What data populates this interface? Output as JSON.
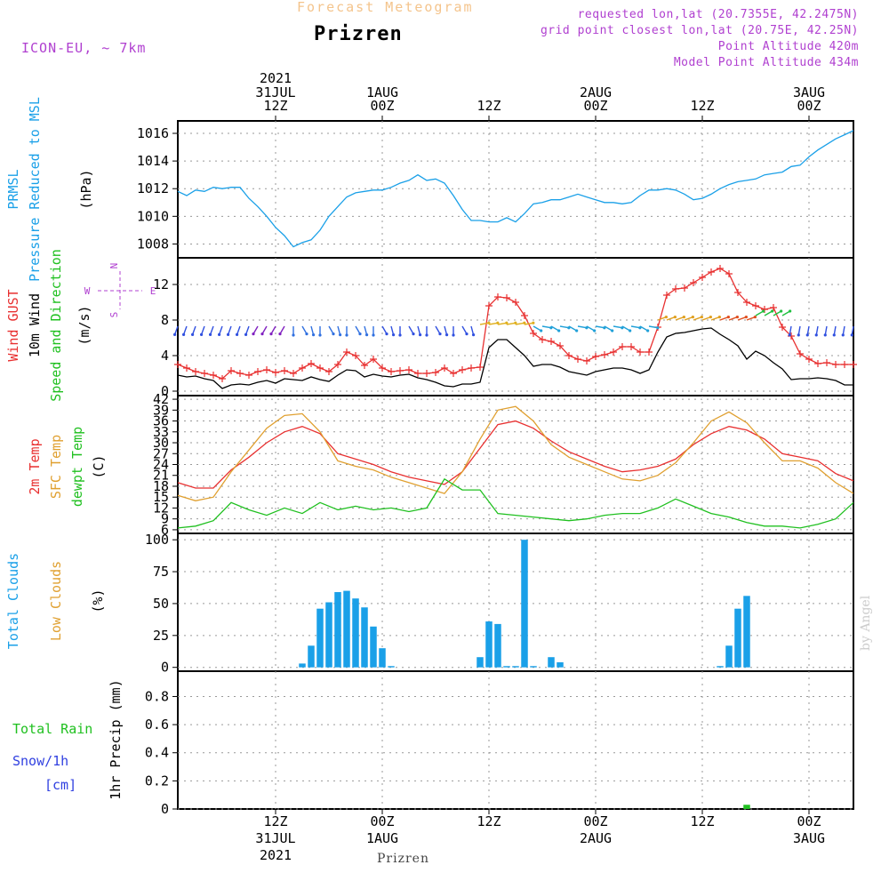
{
  "header": {
    "supertitle": "Forecast Meteogram",
    "location": "Prizren",
    "model": "ICON-EU, ~ 7km",
    "requested": "requested lon,lat (20.7355E, 42.2475N)",
    "gridpoint": "grid point closest lon,lat (20.75E, 42.25N)",
    "point_alt": "Point Altitude 420m",
    "model_alt": "Model Point Altitude 434m"
  },
  "footer": {
    "location": "Prizren",
    "credit": "by Angel"
  },
  "time_axis": {
    "top_year": "2021",
    "ticks": [
      {
        "t": 12,
        "line1": "12Z",
        "line2": "31JUL",
        "line3": "2021"
      },
      {
        "t": 24,
        "line1": "00Z",
        "line2": "1AUG",
        "line3": ""
      },
      {
        "t": 36,
        "line1": "12Z",
        "line2": "",
        "line3": ""
      },
      {
        "t": 48,
        "line1": "00Z",
        "line2": "2AUG",
        "line3": ""
      },
      {
        "t": 60,
        "line1": "12Z",
        "line2": "",
        "line3": ""
      },
      {
        "t": 72,
        "line1": "00Z",
        "line2": "3AUG",
        "line3": ""
      }
    ],
    "range_hours": [
      1,
      77
    ]
  },
  "colors": {
    "pressure": "#1aa0e8",
    "gust": "#e83030",
    "wind": "#000000",
    "t2m": "#e83030",
    "sfc": "#e0a030",
    "dew": "#20c020",
    "cloud": "#1aa0e8",
    "precip": "#20c020",
    "purple": "#b040d0"
  },
  "chart_data": [
    {
      "type": "line",
      "panel": "pressure",
      "ylabel_lines": [
        "PRMSL",
        "Pressure Reduced to MSL",
        "(hPa)"
      ],
      "yticks": [
        1008,
        1010,
        1012,
        1014,
        1016
      ],
      "ylim": [
        1007,
        1016.9
      ],
      "grid": true,
      "series": [
        {
          "name": "PRMSL",
          "x": [
            1,
            2,
            3,
            4,
            5,
            6,
            7,
            8,
            9,
            10,
            11,
            12,
            13,
            14,
            15,
            16,
            17,
            18,
            19,
            20,
            21,
            22,
            23,
            24,
            25,
            26,
            27,
            28,
            29,
            30,
            31,
            32,
            33,
            34,
            35,
            36,
            37,
            38,
            39,
            40,
            41,
            42,
            43,
            44,
            45,
            46,
            47,
            48,
            49,
            50,
            51,
            52,
            53,
            54,
            55,
            56,
            57,
            58,
            59,
            60,
            61,
            62,
            63,
            64,
            65,
            66,
            67,
            68,
            69,
            70,
            71,
            72,
            73,
            74,
            75,
            76,
            77
          ],
          "y": [
            1011.8,
            1011.5,
            1011.9,
            1011.8,
            1012.1,
            1012.0,
            1012.1,
            1012.1,
            1011.3,
            1010.7,
            1010.0,
            1009.2,
            1008.6,
            1007.8,
            1008.1,
            1008.3,
            1009.0,
            1010.0,
            1010.7,
            1011.4,
            1011.7,
            1011.8,
            1011.9,
            1011.9,
            1012.1,
            1012.4,
            1012.6,
            1013.0,
            1012.6,
            1012.7,
            1012.4,
            1011.5,
            1010.5,
            1009.7,
            1009.7,
            1009.6,
            1009.6,
            1009.9,
            1009.6,
            1010.2,
            1010.9,
            1011.0,
            1011.2,
            1011.2,
            1011.4,
            1011.6,
            1011.4,
            1011.2,
            1011.0,
            1011.0,
            1010.9,
            1011.0,
            1011.5,
            1011.9,
            1011.9,
            1012.0,
            1011.9,
            1011.6,
            1011.2,
            1011.3,
            1011.6,
            1012.0,
            1012.3,
            1012.5,
            1012.6,
            1012.7,
            1013.0,
            1013.1,
            1013.2,
            1013.6,
            1013.7,
            1014.3,
            1014.8,
            1015.2,
            1015.6,
            1015.9,
            1016.2
          ]
        }
      ]
    },
    {
      "type": "line",
      "panel": "wind",
      "ylabel_lines": [
        "Wind GUST",
        "10m Wind",
        "Speed and Direction",
        "(m/s)"
      ],
      "compass": {
        "n": "N",
        "s": "S",
        "w": "W",
        "e": "E"
      },
      "yticks": [
        0,
        4,
        8,
        12
      ],
      "ylim": [
        -0.5,
        15
      ],
      "grid": true,
      "series": [
        {
          "name": "Wind GUST",
          "x": [
            1,
            2,
            3,
            4,
            5,
            6,
            7,
            8,
            9,
            10,
            11,
            12,
            13,
            14,
            15,
            16,
            17,
            18,
            19,
            20,
            21,
            22,
            23,
            24,
            25,
            26,
            27,
            28,
            29,
            30,
            31,
            32,
            33,
            34,
            35,
            36,
            37,
            38,
            39,
            40,
            41,
            42,
            43,
            44,
            45,
            46,
            47,
            48,
            49,
            50,
            51,
            52,
            53,
            54,
            55,
            56,
            57,
            58,
            59,
            60,
            61,
            62,
            63,
            64,
            65,
            66,
            67,
            68,
            69,
            70,
            71,
            72,
            73,
            74,
            75,
            76,
            77
          ],
          "y": [
            3.0,
            2.6,
            2.2,
            2.0,
            1.8,
            1.4,
            2.3,
            2.0,
            1.8,
            2.2,
            2.4,
            2.1,
            2.3,
            2.0,
            2.6,
            3.1,
            2.6,
            2.2,
            3.0,
            4.4,
            4.0,
            2.9,
            3.6,
            2.6,
            2.2,
            2.3,
            2.4,
            2.0,
            2.0,
            2.1,
            2.6,
            2.0,
            2.4,
            2.6,
            2.7,
            9.6,
            10.6,
            10.5,
            10.0,
            8.5,
            6.5,
            5.8,
            5.6,
            5.1,
            4.0,
            3.6,
            3.4,
            3.9,
            4.1,
            4.4,
            5.0,
            5.0,
            4.4,
            4.4,
            7.2,
            10.8,
            11.5,
            11.6,
            12.2,
            12.8,
            13.4,
            13.8,
            13.2,
            11.1,
            10.0,
            9.6,
            9.2,
            9.4,
            7.2,
            6.2,
            4.2,
            3.6,
            3.1,
            3.2,
            3.0,
            3.0,
            3.0
          ]
        },
        {
          "name": "10m Wind",
          "x": [
            1,
            2,
            3,
            4,
            5,
            6,
            7,
            8,
            9,
            10,
            11,
            12,
            13,
            14,
            15,
            16,
            17,
            18,
            19,
            20,
            21,
            22,
            23,
            24,
            25,
            26,
            27,
            28,
            29,
            30,
            31,
            32,
            33,
            34,
            35,
            36,
            37,
            38,
            39,
            40,
            41,
            42,
            43,
            44,
            45,
            46,
            47,
            48,
            49,
            50,
            51,
            52,
            53,
            54,
            55,
            56,
            57,
            58,
            59,
            60,
            61,
            62,
            63,
            64,
            65,
            66,
            67,
            68,
            69,
            70,
            71,
            72,
            73,
            74,
            75,
            76,
            77
          ],
          "y": [
            1.8,
            1.6,
            1.7,
            1.4,
            1.2,
            0.3,
            0.7,
            0.8,
            0.7,
            1.0,
            1.2,
            0.9,
            1.4,
            1.3,
            1.2,
            1.6,
            1.3,
            1.1,
            1.8,
            2.4,
            2.3,
            1.6,
            1.9,
            1.7,
            1.6,
            1.8,
            1.9,
            1.5,
            1.3,
            1.0,
            0.6,
            0.5,
            0.8,
            0.8,
            1.0,
            4.9,
            5.8,
            5.8,
            4.9,
            4.0,
            2.8,
            3.0,
            3.0,
            2.7,
            2.2,
            2.0,
            1.8,
            2.2,
            2.4,
            2.6,
            2.6,
            2.4,
            2.0,
            2.4,
            4.4,
            6.1,
            6.5,
            6.6,
            6.8,
            7.0,
            7.1,
            6.4,
            5.8,
            5.1,
            3.6,
            4.5,
            4.0,
            3.2,
            2.5,
            1.3,
            1.4,
            1.4,
            1.5,
            1.4,
            1.2,
            0.7,
            0.7
          ]
        }
      ]
    },
    {
      "type": "line",
      "panel": "temperature",
      "ylabel_lines": [
        "2m Temp",
        "SFC Temp",
        "dewpt Temp",
        "(C)"
      ],
      "yticks": [
        6,
        9,
        12,
        15,
        18,
        21,
        24,
        27,
        30,
        33,
        36,
        39,
        42
      ],
      "ylim": [
        5,
        43
      ],
      "grid": true,
      "series": [
        {
          "name": "2m Temp",
          "x": [
            1,
            3,
            5,
            7,
            9,
            11,
            13,
            15,
            17,
            19,
            21,
            23,
            25,
            27,
            29,
            31,
            33,
            35,
            37,
            39,
            41,
            43,
            45,
            47,
            49,
            51,
            53,
            55,
            57,
            59,
            61,
            63,
            65,
            67,
            69,
            71,
            73,
            75,
            77
          ],
          "y": [
            19.0,
            17.5,
            17.5,
            22.5,
            26.0,
            30.0,
            33.0,
            34.5,
            32.5,
            27.0,
            25.5,
            24.0,
            22.0,
            20.5,
            19.5,
            18.5,
            22.0,
            28.5,
            35.0,
            36.0,
            34.0,
            30.5,
            27.5,
            25.5,
            23.5,
            22.0,
            22.5,
            23.5,
            25.5,
            29.5,
            32.5,
            34.5,
            33.5,
            31.0,
            27.0,
            26.0,
            25.0,
            21.5,
            19.5
          ]
        },
        {
          "name": "SFC Temp",
          "x": [
            1,
            3,
            5,
            7,
            9,
            11,
            13,
            15,
            17,
            19,
            21,
            23,
            25,
            27,
            29,
            31,
            33,
            35,
            37,
            39,
            41,
            43,
            45,
            47,
            49,
            51,
            53,
            55,
            57,
            59,
            61,
            63,
            65,
            67,
            69,
            71,
            73,
            75,
            77
          ],
          "y": [
            15.5,
            14.0,
            15.0,
            22.0,
            28.0,
            34.0,
            37.5,
            38.0,
            33.0,
            25.0,
            23.5,
            22.5,
            20.5,
            19.0,
            17.5,
            16.0,
            22.0,
            31.0,
            39.0,
            40.0,
            36.0,
            29.5,
            26.0,
            24.0,
            22.0,
            20.0,
            19.5,
            21.0,
            24.5,
            30.0,
            36.0,
            38.5,
            35.5,
            30.0,
            25.0,
            25.0,
            23.0,
            19.0,
            16.0
          ]
        },
        {
          "name": "dewpt Temp",
          "x": [
            1,
            3,
            5,
            7,
            9,
            11,
            13,
            15,
            17,
            19,
            21,
            23,
            25,
            27,
            29,
            31,
            33,
            35,
            37,
            39,
            41,
            43,
            45,
            47,
            49,
            51,
            53,
            55,
            57,
            59,
            61,
            63,
            65,
            67,
            69,
            71,
            73,
            75,
            77
          ],
          "y": [
            6.5,
            7.0,
            8.5,
            13.5,
            11.5,
            10.0,
            12.0,
            10.5,
            13.5,
            11.5,
            12.5,
            11.5,
            12.0,
            11.0,
            12.0,
            20.0,
            17.0,
            17.0,
            10.5,
            10.0,
            9.5,
            9.0,
            8.5,
            9.0,
            10.0,
            10.5,
            10.5,
            12.0,
            14.5,
            12.5,
            10.5,
            9.5,
            8.0,
            7.0,
            7.0,
            6.5,
            7.5,
            9.0,
            13.5
          ]
        }
      ]
    },
    {
      "type": "bar",
      "panel": "clouds",
      "ylabel_lines": [
        "Total Clouds",
        "Low Clouds",
        "(%)"
      ],
      "yticks": [
        0,
        25,
        50,
        75,
        100
      ],
      "ylim": [
        -3,
        105
      ],
      "grid": true,
      "series": [
        {
          "name": "Total Clouds",
          "x": [
            15,
            16,
            17,
            18,
            19,
            20,
            21,
            22,
            23,
            24,
            25,
            35,
            36,
            37,
            38,
            39,
            40,
            41,
            43,
            44,
            62,
            63,
            64,
            65
          ],
          "y": [
            3,
            17,
            46,
            51,
            59,
            60,
            54,
            47,
            32,
            15,
            1,
            8,
            36,
            34,
            1,
            1,
            100,
            1,
            8,
            4,
            1,
            17,
            46,
            56
          ]
        }
      ]
    },
    {
      "type": "bar",
      "panel": "precip",
      "ylabel_lines": [
        "1hr Precip (mm)"
      ],
      "legend_lines": [
        "Total Rain",
        "Snow/1h",
        "[cm]"
      ],
      "yticks": [
        0,
        0.2,
        0.4,
        0.6,
        0.8
      ],
      "ylim": [
        0,
        0.98
      ],
      "grid": true,
      "series": [
        {
          "name": "Total Rain",
          "x": [
            65
          ],
          "y": [
            0.03
          ]
        }
      ]
    }
  ]
}
